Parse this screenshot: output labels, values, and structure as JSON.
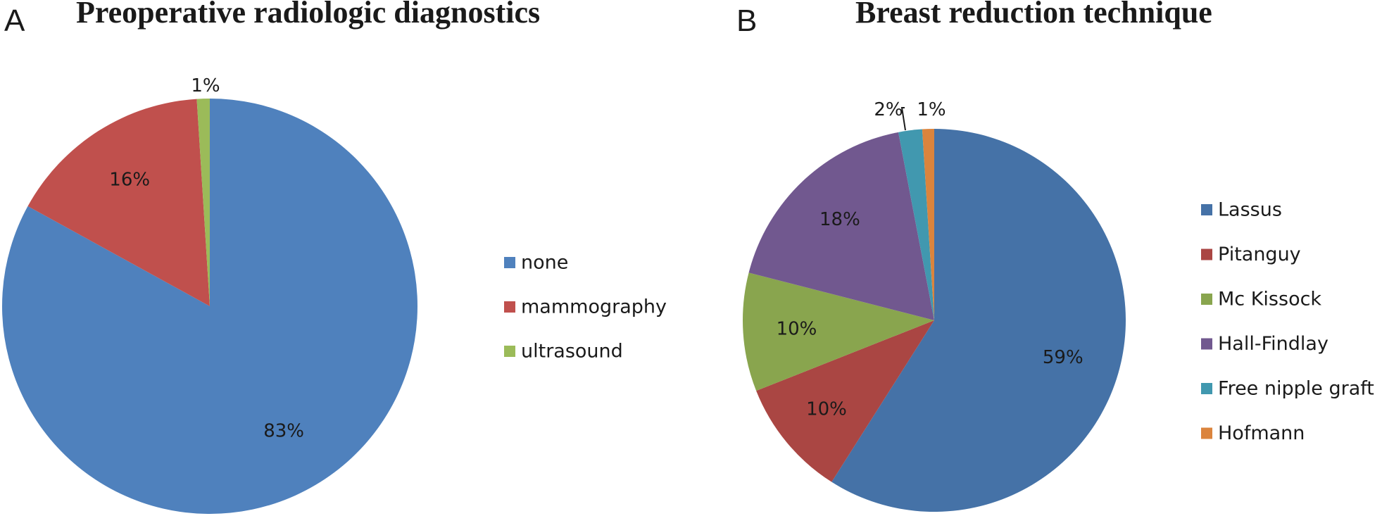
{
  "chart_data": [
    {
      "type": "pie",
      "panel": "A",
      "title": "Preoperative radiologic diagnostics",
      "categories": [
        "none",
        "mammography",
        "ultrasound"
      ],
      "values": [
        83,
        16,
        1
      ],
      "labels": [
        "83%",
        "16%",
        "1%"
      ],
      "colors": [
        "#4F81BD",
        "#C0504D",
        "#9BBB59"
      ],
      "legend_position": "right"
    },
    {
      "type": "pie",
      "panel": "B",
      "title": "Breast reduction technique",
      "categories": [
        "Lassus",
        "Pitanguy",
        "Mc Kissock",
        "Hall-Findlay",
        "Free nipple graft",
        "Hofmann"
      ],
      "values": [
        59,
        10,
        10,
        18,
        2,
        1
      ],
      "labels": [
        "59%",
        "10%",
        "10%",
        "18%",
        "2%",
        "1%"
      ],
      "colors": [
        "#4572A7",
        "#AA4643",
        "#89A54E",
        "#71588F",
        "#4198AF",
        "#DB843D"
      ],
      "legend_position": "right"
    }
  ]
}
